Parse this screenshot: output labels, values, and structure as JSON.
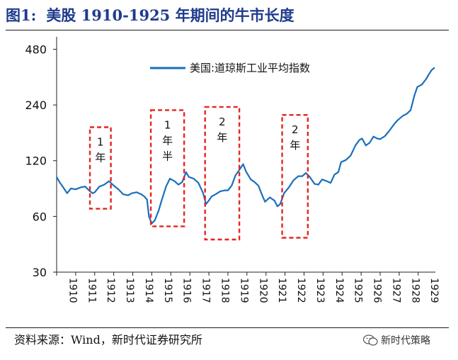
{
  "title_prefix": "图1:",
  "title_text": "美股 1910-1925 年期间的牛市长度",
  "source": "资料来源：Wind，新时代证券研究所",
  "watermark": "新时代策略",
  "colors": {
    "series": "#1a6fbd",
    "annot": "#e52521",
    "title": "#1f3b8c"
  },
  "chart_data": {
    "type": "line",
    "y_scale": "log",
    "ylim": [
      30,
      560
    ],
    "xlim": [
      1910.0,
      1929.9
    ],
    "yticks": [
      30,
      60,
      120,
      240,
      480
    ],
    "xticks": [
      "1910",
      "1911",
      "1912",
      "1913",
      "1914",
      "1915",
      "1916",
      "1917",
      "1918",
      "1919",
      "1920",
      "1921",
      "1922",
      "1923",
      "1924",
      "1925",
      "1926",
      "1927",
      "1928",
      "1929"
    ],
    "legend": "top",
    "series": [
      {
        "name": "美国:道琼斯工业平均指数",
        "points": [
          [
            1910.0,
            98
          ],
          [
            1910.15,
            92
          ],
          [
            1910.35,
            86
          ],
          [
            1910.55,
            80
          ],
          [
            1910.75,
            85
          ],
          [
            1911.0,
            84
          ],
          [
            1911.25,
            86
          ],
          [
            1911.5,
            87
          ],
          [
            1911.75,
            82
          ],
          [
            1911.9,
            80
          ],
          [
            1912.0,
            81
          ],
          [
            1912.25,
            87
          ],
          [
            1912.5,
            89
          ],
          [
            1912.75,
            93
          ],
          [
            1912.9,
            90
          ],
          [
            1913.0,
            88
          ],
          [
            1913.25,
            84
          ],
          [
            1913.5,
            79
          ],
          [
            1913.75,
            78
          ],
          [
            1913.95,
            80
          ],
          [
            1914.2,
            81
          ],
          [
            1914.45,
            79
          ],
          [
            1914.6,
            77
          ],
          [
            1914.75,
            74
          ],
          [
            1914.85,
            60
          ],
          [
            1915.0,
            55
          ],
          [
            1915.15,
            57
          ],
          [
            1915.35,
            64
          ],
          [
            1915.55,
            75
          ],
          [
            1915.75,
            87
          ],
          [
            1915.95,
            96
          ],
          [
            1916.2,
            93
          ],
          [
            1916.4,
            89
          ],
          [
            1916.6,
            92
          ],
          [
            1916.8,
            104
          ],
          [
            1916.95,
            98
          ],
          [
            1917.2,
            96
          ],
          [
            1917.45,
            91
          ],
          [
            1917.7,
            80
          ],
          [
            1917.85,
            70
          ],
          [
            1917.95,
            72
          ],
          [
            1918.15,
            77
          ],
          [
            1918.35,
            79
          ],
          [
            1918.6,
            82
          ],
          [
            1918.85,
            83
          ],
          [
            1919.0,
            83
          ],
          [
            1919.2,
            88
          ],
          [
            1919.4,
            100
          ],
          [
            1919.6,
            107
          ],
          [
            1919.8,
            115
          ],
          [
            1919.95,
            105
          ],
          [
            1920.2,
            95
          ],
          [
            1920.4,
            92
          ],
          [
            1920.6,
            88
          ],
          [
            1920.8,
            78
          ],
          [
            1920.95,
            72
          ],
          [
            1921.2,
            76
          ],
          [
            1921.45,
            73
          ],
          [
            1921.6,
            68
          ],
          [
            1921.75,
            70
          ],
          [
            1921.95,
            80
          ],
          [
            1922.2,
            86
          ],
          [
            1922.45,
            94
          ],
          [
            1922.7,
            99
          ],
          [
            1922.9,
            99
          ],
          [
            1923.1,
            103
          ],
          [
            1923.3,
            98
          ],
          [
            1923.55,
            90
          ],
          [
            1923.75,
            89
          ],
          [
            1923.95,
            95
          ],
          [
            1924.2,
            93
          ],
          [
            1924.4,
            91
          ],
          [
            1924.6,
            101
          ],
          [
            1924.8,
            104
          ],
          [
            1924.95,
            118
          ],
          [
            1925.2,
            121
          ],
          [
            1925.45,
            128
          ],
          [
            1925.7,
            145
          ],
          [
            1925.9,
            155
          ],
          [
            1926.05,
            158
          ],
          [
            1926.25,
            145
          ],
          [
            1926.45,
            150
          ],
          [
            1926.65,
            162
          ],
          [
            1926.85,
            158
          ],
          [
            1927.0,
            157
          ],
          [
            1927.25,
            163
          ],
          [
            1927.5,
            175
          ],
          [
            1927.75,
            190
          ],
          [
            1927.95,
            200
          ],
          [
            1928.2,
            210
          ],
          [
            1928.4,
            215
          ],
          [
            1928.6,
            225
          ],
          [
            1928.8,
            270
          ],
          [
            1928.95,
            300
          ],
          [
            1929.2,
            310
          ],
          [
            1929.4,
            330
          ],
          [
            1929.55,
            350
          ],
          [
            1929.7,
            370
          ],
          [
            1929.85,
            381
          ]
        ]
      }
    ],
    "annotations": [
      {
        "x0": 1911.75,
        "x1": 1912.85,
        "y0": 66,
        "y1": 182,
        "label": [
          "1",
          "年"
        ]
      },
      {
        "x0": 1914.95,
        "x1": 1916.7,
        "y0": 53,
        "y1": 225,
        "label": [
          "1",
          "年",
          "半"
        ]
      },
      {
        "x0": 1917.8,
        "x1": 1919.6,
        "y0": 45,
        "y1": 234,
        "label": [
          "2",
          "年"
        ]
      },
      {
        "x0": 1921.85,
        "x1": 1923.2,
        "y0": 46,
        "y1": 212,
        "label": [
          "2",
          "年"
        ]
      }
    ]
  }
}
